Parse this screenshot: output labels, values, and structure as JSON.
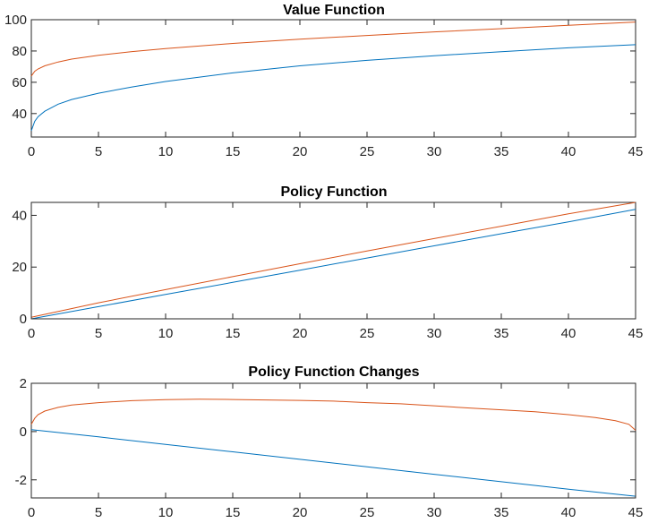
{
  "figure": {
    "background": "#ffffff",
    "axis_color": "#262626"
  },
  "series_colors": {
    "blue": "#0072bd",
    "orange": "#d95319"
  },
  "chart_data": [
    {
      "type": "line",
      "title": "Value Function",
      "xlim": [
        0,
        45
      ],
      "ylim": [
        25,
        100
      ],
      "xticks": [
        0,
        5,
        10,
        15,
        20,
        25,
        30,
        35,
        40,
        45
      ],
      "yticks": [
        40,
        60,
        80,
        100
      ],
      "grid": false,
      "series": [
        {
          "color": "#d95319",
          "x": [
            0,
            0.25,
            0.5,
            1,
            2,
            3,
            5,
            7.5,
            10,
            15,
            20,
            25,
            30,
            35,
            40,
            45
          ],
          "y": [
            64,
            67,
            68.5,
            70.5,
            73,
            74.8,
            77.2,
            79.6,
            81.5,
            84.8,
            87.5,
            89.9,
            92.2,
            94.3,
            96.4,
            98.5
          ]
        },
        {
          "color": "#0072bd",
          "x": [
            0,
            0.25,
            0.5,
            1,
            2,
            3,
            5,
            7.5,
            10,
            15,
            20,
            25,
            30,
            35,
            40,
            45
          ],
          "y": [
            29,
            35,
            38,
            41.5,
            46,
            49,
            53,
            57,
            60.5,
            66,
            70.5,
            74,
            77,
            79.5,
            82,
            84
          ]
        }
      ]
    },
    {
      "type": "line",
      "title": "Policy Function",
      "xlim": [
        0,
        45
      ],
      "ylim": [
        0,
        45
      ],
      "xticks": [
        0,
        5,
        10,
        15,
        20,
        25,
        30,
        35,
        40,
        45
      ],
      "yticks": [
        0,
        20,
        40
      ],
      "grid": false,
      "series": [
        {
          "color": "#d95319",
          "x": [
            0,
            5,
            10,
            15,
            20,
            25,
            30,
            35,
            40,
            45
          ],
          "y": [
            0.6,
            6.2,
            11.3,
            16.3,
            21.3,
            26.2,
            31.0,
            35.8,
            40.6,
            45.0
          ]
        },
        {
          "color": "#0072bd",
          "x": [
            0,
            5,
            10,
            15,
            20,
            25,
            30,
            35,
            40,
            45
          ],
          "y": [
            0.0,
            4.7,
            9.4,
            14.1,
            18.8,
            23.5,
            28.2,
            32.9,
            37.5,
            42.3
          ]
        }
      ]
    },
    {
      "type": "line",
      "title": "Policy Function Changes",
      "xlim": [
        0,
        45
      ],
      "ylim": [
        -2.75,
        2
      ],
      "xticks": [
        0,
        5,
        10,
        15,
        20,
        25,
        30,
        35,
        40,
        45
      ],
      "yticks": [
        -2,
        0,
        2
      ],
      "grid": false,
      "series": [
        {
          "color": "#d95319",
          "x": [
            0,
            0.25,
            0.5,
            1,
            2,
            3,
            5,
            7.5,
            10,
            12.5,
            15,
            17.5,
            20,
            22.5,
            25,
            27.5,
            30,
            32.5,
            35,
            37.5,
            40,
            42,
            43.5,
            44.5,
            45
          ],
          "y": [
            0.3,
            0.55,
            0.7,
            0.85,
            1.0,
            1.1,
            1.2,
            1.28,
            1.32,
            1.34,
            1.33,
            1.31,
            1.29,
            1.26,
            1.2,
            1.15,
            1.07,
            0.98,
            0.9,
            0.82,
            0.7,
            0.58,
            0.45,
            0.3,
            0.05
          ]
        },
        {
          "color": "#0072bd",
          "x": [
            0,
            5,
            10,
            15,
            20,
            25,
            30,
            35,
            40,
            45
          ],
          "y": [
            0.08,
            -0.22,
            -0.53,
            -0.84,
            -1.15,
            -1.46,
            -1.77,
            -2.08,
            -2.39,
            -2.68
          ]
        }
      ]
    }
  ]
}
